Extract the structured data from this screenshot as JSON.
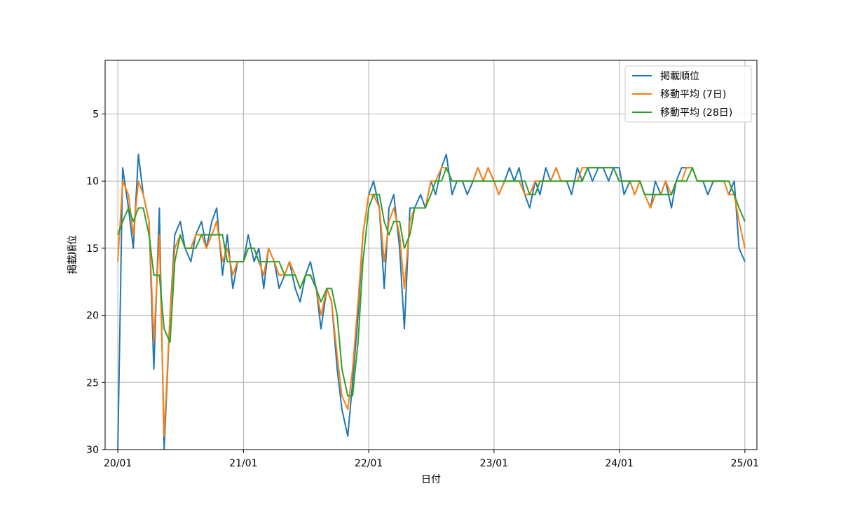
{
  "chart_data": {
    "type": "line",
    "title": "",
    "xlabel": "日付",
    "ylabel": "掲載順位",
    "x_ticks": [
      "20/01",
      "21/01",
      "22/01",
      "23/01",
      "24/01",
      "25/01"
    ],
    "y_ticks": [
      5,
      10,
      15,
      20,
      25,
      30
    ],
    "xlim": [
      "2019-11-25",
      "2025-02-05"
    ],
    "ylim": [
      1,
      30
    ],
    "y_inverted": true,
    "grid": true,
    "legend_position": "top-right",
    "x_dates": [
      "2020-01-01",
      "2020-01-15",
      "2020-02-01",
      "2020-02-15",
      "2020-03-01",
      "2020-03-15",
      "2020-04-01",
      "2020-04-15",
      "2020-05-01",
      "2020-05-15",
      "2020-06-01",
      "2020-06-15",
      "2020-07-01",
      "2020-07-15",
      "2020-08-01",
      "2020-08-15",
      "2020-09-01",
      "2020-09-15",
      "2020-10-01",
      "2020-10-15",
      "2020-11-01",
      "2020-11-15",
      "2020-12-01",
      "2020-12-15",
      "2021-01-01",
      "2021-01-15",
      "2021-02-01",
      "2021-02-15",
      "2021-03-01",
      "2021-03-15",
      "2021-04-01",
      "2021-04-15",
      "2021-05-01",
      "2021-05-15",
      "2021-06-01",
      "2021-06-15",
      "2021-07-01",
      "2021-07-15",
      "2021-08-01",
      "2021-08-15",
      "2021-09-01",
      "2021-09-15",
      "2021-10-01",
      "2021-10-15",
      "2021-11-01",
      "2021-11-15",
      "2021-12-01",
      "2021-12-15",
      "2022-01-01",
      "2022-01-15",
      "2022-02-01",
      "2022-02-15",
      "2022-03-01",
      "2022-03-15",
      "2022-04-01",
      "2022-04-15",
      "2022-05-01",
      "2022-05-15",
      "2022-06-01",
      "2022-06-15",
      "2022-07-01",
      "2022-07-15",
      "2022-08-01",
      "2022-08-15",
      "2022-09-01",
      "2022-09-15",
      "2022-10-01",
      "2022-10-15",
      "2022-11-01",
      "2022-11-15",
      "2022-12-01",
      "2022-12-15",
      "2023-01-01",
      "2023-01-15",
      "2023-02-01",
      "2023-02-15",
      "2023-03-01",
      "2023-03-15",
      "2023-04-01",
      "2023-04-15",
      "2023-05-01",
      "2023-05-15",
      "2023-06-01",
      "2023-06-15",
      "2023-07-01",
      "2023-07-15",
      "2023-08-01",
      "2023-08-15",
      "2023-09-01",
      "2023-09-15",
      "2023-10-01",
      "2023-10-15",
      "2023-11-01",
      "2023-11-15",
      "2023-12-01",
      "2023-12-15",
      "2024-01-01",
      "2024-01-15",
      "2024-02-01",
      "2024-02-15",
      "2024-03-01",
      "2024-03-15",
      "2024-04-01",
      "2024-04-15",
      "2024-05-01",
      "2024-05-15",
      "2024-06-01",
      "2024-06-15",
      "2024-07-01",
      "2024-07-15",
      "2024-08-01",
      "2024-08-15",
      "2024-09-01",
      "2024-09-15",
      "2024-10-01",
      "2024-10-15",
      "2024-11-01",
      "2024-11-15",
      "2024-12-01",
      "2024-12-15",
      "2025-01-01"
    ],
    "series": [
      {
        "name": "掲載順位",
        "color": "#1f77b4",
        "values": [
          30,
          9,
          12,
          15,
          8,
          11,
          13,
          24,
          12,
          30,
          20,
          14,
          13,
          15,
          16,
          14,
          13,
          15,
          13,
          12,
          17,
          14,
          18,
          16,
          16,
          14,
          16,
          15,
          18,
          15,
          16,
          18,
          17,
          16,
          18,
          19,
          17,
          16,
          18,
          21,
          18,
          19,
          24,
          27,
          29,
          25,
          20,
          14,
          11,
          10,
          12,
          18,
          12,
          11,
          15,
          21,
          12,
          12,
          11,
          12,
          10,
          11,
          9,
          8,
          11,
          10,
          10,
          11,
          10,
          9,
          10,
          9,
          10,
          11,
          10,
          9,
          10,
          9,
          11,
          12,
          10,
          11,
          9,
          10,
          9,
          10,
          10,
          11,
          9,
          10,
          9,
          10,
          9,
          9,
          10,
          9,
          9,
          11,
          10,
          11,
          10,
          11,
          12,
          10,
          11,
          10,
          12,
          10,
          9,
          9,
          9,
          10,
          10,
          11,
          10,
          10,
          10,
          11,
          10,
          15,
          16
        ]
      },
      {
        "name": "移動平均 (7日)",
        "color": "#ff7f0e",
        "values": [
          16,
          10,
          11,
          14,
          10,
          11,
          13,
          22,
          14,
          29,
          20,
          15,
          14,
          15,
          15,
          14,
          14,
          15,
          14,
          13,
          16,
          15,
          17,
          16,
          16,
          15,
          15,
          16,
          17,
          15,
          16,
          17,
          17,
          16,
          17,
          18,
          17,
          17,
          18,
          20,
          18,
          19,
          23,
          26,
          27,
          24,
          19,
          14,
          11,
          11,
          12,
          16,
          13,
          12,
          14,
          18,
          13,
          12,
          12,
          12,
          10,
          10,
          9,
          9,
          10,
          10,
          10,
          10,
          10,
          9,
          10,
          9,
          10,
          11,
          10,
          10,
          10,
          10,
          11,
          11,
          10,
          10,
          10,
          10,
          9,
          10,
          10,
          10,
          10,
          9,
          9,
          9,
          9,
          9,
          9,
          9,
          10,
          10,
          10,
          11,
          10,
          11,
          12,
          11,
          11,
          10,
          11,
          10,
          10,
          9,
          9,
          10,
          10,
          10,
          10,
          10,
          10,
          11,
          11,
          13,
          15
        ]
      },
      {
        "name": "移動平均 (28日)",
        "color": "#2ca02c",
        "values": [
          14,
          13,
          12,
          13,
          12,
          12,
          14,
          17,
          17,
          21,
          22,
          16,
          14,
          15,
          15,
          15,
          14,
          14,
          14,
          14,
          14,
          16,
          16,
          16,
          16,
          15,
          15,
          16,
          16,
          16,
          16,
          16,
          17,
          17,
          17,
          18,
          17,
          17,
          18,
          19,
          18,
          18,
          20,
          24,
          26,
          26,
          22,
          16,
          12,
          11,
          11,
          13,
          14,
          13,
          13,
          15,
          14,
          12,
          12,
          12,
          11,
          10,
          10,
          9,
          10,
          10,
          10,
          10,
          10,
          10,
          10,
          10,
          10,
          10,
          10,
          10,
          10,
          10,
          10,
          11,
          11,
          10,
          10,
          10,
          10,
          10,
          10,
          10,
          10,
          10,
          9,
          9,
          9,
          9,
          9,
          9,
          10,
          10,
          10,
          10,
          10,
          11,
          11,
          11,
          11,
          11,
          11,
          10,
          10,
          10,
          9,
          10,
          10,
          10,
          10,
          10,
          10,
          10,
          11,
          12,
          13
        ]
      }
    ]
  }
}
